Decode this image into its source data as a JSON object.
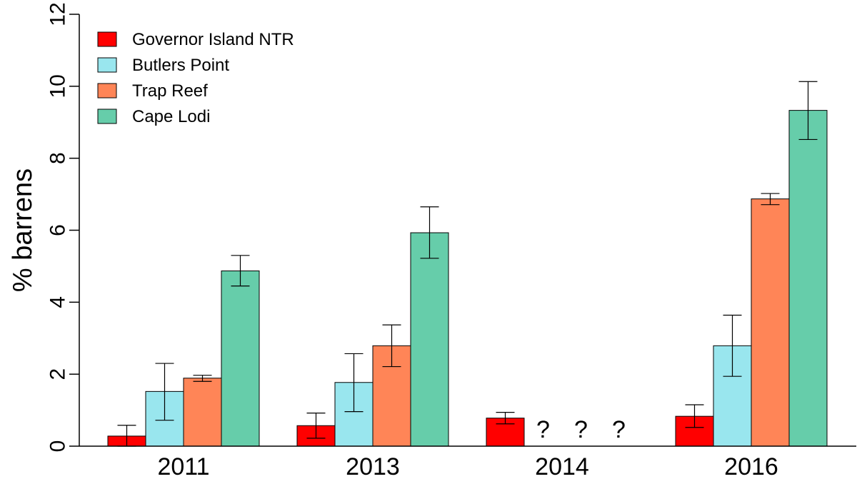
{
  "chart_data": {
    "type": "bar",
    "title": "",
    "xlabel": "",
    "ylabel": "% barrens",
    "ylim": [
      0,
      12
    ],
    "yticks": [
      0,
      2,
      4,
      6,
      8,
      10,
      12
    ],
    "grid": false,
    "legend_position": "top-left",
    "categories": [
      "2011",
      "2013",
      "2014",
      "2016"
    ],
    "missing_marker": "?",
    "series": [
      {
        "name": "Governor Island NTR",
        "color": "#ff0000",
        "values": [
          0.28,
          0.57,
          0.78,
          0.83
        ],
        "error_low": [
          0.0,
          0.22,
          0.62,
          0.52
        ],
        "error_high": [
          0.58,
          0.92,
          0.94,
          1.15
        ]
      },
      {
        "name": "Butlers Point",
        "color": "#99e6ee",
        "values": [
          1.52,
          1.77,
          null,
          2.79
        ],
        "error_low": [
          0.72,
          0.96,
          null,
          1.94
        ],
        "error_high": [
          2.3,
          2.57,
          null,
          3.64
        ]
      },
      {
        "name": "Trap Reef",
        "color": "#ff8557",
        "values": [
          1.89,
          2.79,
          null,
          6.87
        ],
        "error_low": [
          1.8,
          2.21,
          null,
          6.71
        ],
        "error_high": [
          1.97,
          3.37,
          null,
          7.02
        ]
      },
      {
        "name": "Cape Lodi",
        "color": "#66cdaa",
        "values": [
          4.87,
          5.93,
          null,
          9.33
        ],
        "error_low": [
          4.45,
          5.22,
          null,
          8.52
        ],
        "error_high": [
          5.3,
          6.65,
          null,
          10.13
        ]
      }
    ]
  }
}
